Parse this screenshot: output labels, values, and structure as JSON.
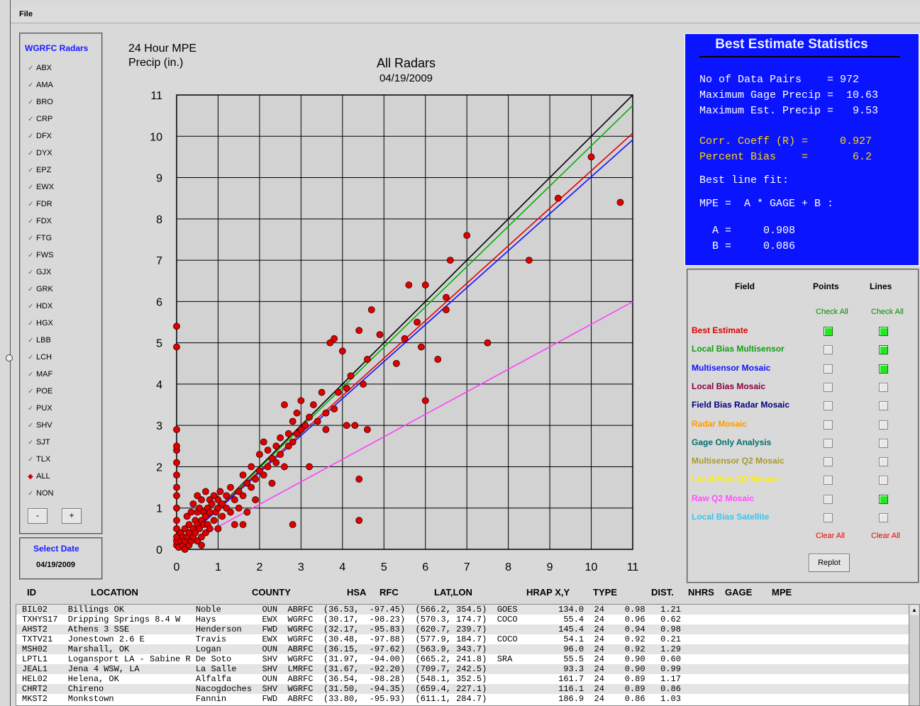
{
  "menu": {
    "file": "File"
  },
  "radars": {
    "title": "WGRFC Radars",
    "items": [
      "ABX",
      "AMA",
      "BRO",
      "CRP",
      "DFX",
      "DYX",
      "EPZ",
      "EWX",
      "FDR",
      "FDX",
      "FTG",
      "FWS",
      "GJX",
      "GRK",
      "HDX",
      "HGX",
      "LBB",
      "LCH",
      "MAF",
      "POE",
      "PUX",
      "SHV",
      "SJT",
      "TLX",
      "ALL",
      "NON"
    ],
    "selected": "ALL",
    "minus_label": "-",
    "plus_label": "+"
  },
  "date_panel": {
    "title": "Select Date",
    "value": "04/19/2009"
  },
  "chart_header": {
    "ylabel_line1": "24 Hour MPE",
    "ylabel_line2": "Precip (in.)",
    "title": "All Radars",
    "date": "04/19/2009"
  },
  "chart_data": {
    "type": "scatter",
    "title": "All Radars",
    "subtitle": "04/19/2009",
    "xlabel": "",
    "ylabel": "24 Hour MPE Precip (in.)",
    "xlim": [
      0,
      11
    ],
    "ylim": [
      0,
      11
    ],
    "ticks": [
      0,
      1,
      2,
      3,
      4,
      5,
      6,
      7,
      8,
      9,
      10,
      11
    ],
    "grid": true,
    "points": [
      [
        0,
        0.1
      ],
      [
        0,
        0.2
      ],
      [
        0,
        0.3
      ],
      [
        0,
        0.5
      ],
      [
        0,
        0.7
      ],
      [
        0,
        1.0
      ],
      [
        0,
        1.3
      ],
      [
        0,
        1.5
      ],
      [
        0,
        1.8
      ],
      [
        0,
        2.1
      ],
      [
        0,
        2.4
      ],
      [
        0,
        2.5
      ],
      [
        0,
        2.9
      ],
      [
        0,
        4.9
      ],
      [
        0,
        5.4
      ],
      [
        0.05,
        0.05
      ],
      [
        0.1,
        0.2
      ],
      [
        0.1,
        0.4
      ],
      [
        0.15,
        0.1
      ],
      [
        0.15,
        0.3
      ],
      [
        0.2,
        0.0
      ],
      [
        0.2,
        0.2
      ],
      [
        0.2,
        0.5
      ],
      [
        0.25,
        0.3
      ],
      [
        0.25,
        0.8
      ],
      [
        0.3,
        0.1
      ],
      [
        0.3,
        0.4
      ],
      [
        0.3,
        0.6
      ],
      [
        0.35,
        0.2
      ],
      [
        0.35,
        0.9
      ],
      [
        0.4,
        0.3
      ],
      [
        0.4,
        0.5
      ],
      [
        0.4,
        1.1
      ],
      [
        0.45,
        0.4
      ],
      [
        0.45,
        0.7
      ],
      [
        0.5,
        0.2
      ],
      [
        0.5,
        0.6
      ],
      [
        0.5,
        0.9
      ],
      [
        0.5,
        1.3
      ],
      [
        0.55,
        0.5
      ],
      [
        0.55,
        1.0
      ],
      [
        0.6,
        0.3
      ],
      [
        0.6,
        0.7
      ],
      [
        0.6,
        1.2
      ],
      [
        0.65,
        0.6
      ],
      [
        0.65,
        0.9
      ],
      [
        0.7,
        0.4
      ],
      [
        0.7,
        0.8
      ],
      [
        0.7,
        1.4
      ],
      [
        0.75,
        1.0
      ],
      [
        0.75,
        0.6
      ],
      [
        0.8,
        0.5
      ],
      [
        0.8,
        0.9
      ],
      [
        0.8,
        1.2
      ],
      [
        0.85,
        1.1
      ],
      [
        0.9,
        0.7
      ],
      [
        0.9,
        1.3
      ],
      [
        0.95,
        0.9
      ],
      [
        1.0,
        0.5
      ],
      [
        1.0,
        1.0
      ],
      [
        1.0,
        1.2
      ],
      [
        1.05,
        1.4
      ],
      [
        1.1,
        0.8
      ],
      [
        1.1,
        1.1
      ],
      [
        1.2,
        1.0
      ],
      [
        1.2,
        1.3
      ],
      [
        1.3,
        0.9
      ],
      [
        1.3,
        1.5
      ],
      [
        1.4,
        1.2
      ],
      [
        1.4,
        0.6
      ],
      [
        1.5,
        1.4
      ],
      [
        1.5,
        1.0
      ],
      [
        1.6,
        1.3
      ],
      [
        1.6,
        1.8
      ],
      [
        1.7,
        1.6
      ],
      [
        1.7,
        0.9
      ],
      [
        1.8,
        1.5
      ],
      [
        1.8,
        2.0
      ],
      [
        1.9,
        1.7
      ],
      [
        1.9,
        1.2
      ],
      [
        2.0,
        1.9
      ],
      [
        2.0,
        2.3
      ],
      [
        2.1,
        1.8
      ],
      [
        2.1,
        2.6
      ],
      [
        2.2,
        2.0
      ],
      [
        2.2,
        2.4
      ],
      [
        2.3,
        2.2
      ],
      [
        2.3,
        1.6
      ],
      [
        2.4,
        2.5
      ],
      [
        2.4,
        2.1
      ],
      [
        2.5,
        2.7
      ],
      [
        2.5,
        2.3
      ],
      [
        2.6,
        3.5
      ],
      [
        2.6,
        2.0
      ],
      [
        2.7,
        2.8
      ],
      [
        2.7,
        2.5
      ],
      [
        2.8,
        3.1
      ],
      [
        2.8,
        2.6
      ],
      [
        2.9,
        2.8
      ],
      [
        2.9,
        3.3
      ],
      [
        3.0,
        2.9
      ],
      [
        3.0,
        3.6
      ],
      [
        3.1,
        3.0
      ],
      [
        3.2,
        3.2
      ],
      [
        3.2,
        2.0
      ],
      [
        3.3,
        3.5
      ],
      [
        3.4,
        3.1
      ],
      [
        3.5,
        3.8
      ],
      [
        3.6,
        2.9
      ],
      [
        3.6,
        3.3
      ],
      [
        3.7,
        5.0
      ],
      [
        3.8,
        3.4
      ],
      [
        3.8,
        5.1
      ],
      [
        3.9,
        3.8
      ],
      [
        4.0,
        4.8
      ],
      [
        4.1,
        3.0
      ],
      [
        4.1,
        3.9
      ],
      [
        4.2,
        4.2
      ],
      [
        4.3,
        3.0
      ],
      [
        4.4,
        5.3
      ],
      [
        4.4,
        1.7
      ],
      [
        4.5,
        4.0
      ],
      [
        4.6,
        2.9
      ],
      [
        4.6,
        4.6
      ],
      [
        4.7,
        5.8
      ],
      [
        4.9,
        5.2
      ],
      [
        5.3,
        4.5
      ],
      [
        5.5,
        5.1
      ],
      [
        5.6,
        6.4
      ],
      [
        5.8,
        5.5
      ],
      [
        5.9,
        4.9
      ],
      [
        6.0,
        3.6
      ],
      [
        6.0,
        6.4
      ],
      [
        6.3,
        4.6
      ],
      [
        6.5,
        6.1
      ],
      [
        6.5,
        5.8
      ],
      [
        6.6,
        7.0
      ],
      [
        7.0,
        7.6
      ],
      [
        7.5,
        5.0
      ],
      [
        8.5,
        7.0
      ],
      [
        9.2,
        8.5
      ],
      [
        10.0,
        9.5
      ],
      [
        10.7,
        8.4
      ],
      [
        1.6,
        0.6
      ],
      [
        0.6,
        0.1
      ],
      [
        2.8,
        0.6
      ],
      [
        4.4,
        0.7
      ]
    ],
    "lines": [
      {
        "name": "1:1",
        "color": "#000000",
        "slope": 1.0,
        "intercept": 0.0
      },
      {
        "name": "Local Bias Multisensor",
        "color": "#00b000",
        "slope": 0.975,
        "intercept": 0.02
      },
      {
        "name": "Best Estimate",
        "color": "#e00000",
        "slope": 0.908,
        "intercept": 0.086
      },
      {
        "name": "Multisensor Mosaic",
        "color": "#1010ff",
        "slope": 0.895,
        "intercept": 0.07
      },
      {
        "name": "Raw Q2 Mosaic",
        "color": "#ff40ff",
        "slope": 0.545,
        "intercept": 0.0
      }
    ]
  },
  "stats": {
    "title": "Best Estimate Statistics",
    "line1": "No of Data Pairs    = 972",
    "line2": "Maximum Gage Precip =  10.63",
    "line3": "Maximum Est. Precip =   9.53",
    "line4": "Corr. Coeff (R) =     0.927",
    "line5": "Percent Bias    =       6.2",
    "line6": "Best line fit:",
    "line7": "MPE =  A * GAGE + B :",
    "line8": "  A =     0.908",
    "line9": "  B =     0.086"
  },
  "fields": {
    "col_field": "Field",
    "col_points": "Points",
    "col_lines": "Lines",
    "check_all_points": "Check All",
    "check_all_lines": "Check All",
    "clear_all_points": "Clear All",
    "clear_all_lines": "Clear All",
    "replot": "Replot",
    "rows": [
      {
        "label": "Best Estimate",
        "color": "#e00000",
        "points": true,
        "lines": true
      },
      {
        "label": "Local Bias Multisensor",
        "color": "#10a010",
        "points": false,
        "lines": true
      },
      {
        "label": "Multisensor Mosaic",
        "color": "#1010ff",
        "points": false,
        "lines": true
      },
      {
        "label": "Local Bias Mosaic",
        "color": "#8b0040",
        "points": false,
        "lines": false
      },
      {
        "label": "Field Bias Radar Mosaic",
        "color": "#000080",
        "points": false,
        "lines": false
      },
      {
        "label": "Radar Mosaic",
        "color": "#ff9a00",
        "points": false,
        "lines": false
      },
      {
        "label": "Gage Only Analysis",
        "color": "#007070",
        "points": false,
        "lines": false
      },
      {
        "label": "Multisensor Q2 Mosaic",
        "color": "#a89a28",
        "points": false,
        "lines": false
      },
      {
        "label": "Local Bias Q2 Mosaic",
        "color": "#ffee00",
        "points": false,
        "lines": false
      },
      {
        "label": "Raw Q2 Mosaic",
        "color": "#ff50ff",
        "points": false,
        "lines": true
      },
      {
        "label": "Local Bias Satellite",
        "color": "#30c8f0",
        "points": false,
        "lines": false
      }
    ]
  },
  "table": {
    "headers": [
      "ID",
      "LOCATION",
      "COUNTY",
      "HSA",
      "RFC",
      "LAT,LON",
      "HRAP X,Y",
      "TYPE",
      "DIST.",
      "NHRS",
      "GAGE",
      "MPE"
    ],
    "rows": [
      "BIL02    Billings OK              Noble        OUN  ABRFC  (36.53,  -97.45)  (566.2, 354.5)  GOES        134.0  24    0.98   1.21",
      "TXHYS17  Dripping Springs 8.4 W   Hays         EWX  WGRFC  (30.17,  -98.23)  (570.3, 174.7)  COCO         55.4  24    0.96   0.62",
      "AHST2    Athens 3 SSE             Henderson    FWD  WGRFC  (32.17,  -95.83)  (620.7, 239.7)              145.4  24    0.94   0.98",
      "TXTV21   Jonestown 2.6 E          Travis       EWX  WGRFC  (30.48,  -97.88)  (577.9, 184.7)  COCO         54.1  24    0.92   0.21",
      "MSH02    Marshall, OK             Logan        OUN  ABRFC  (36.15,  -97.62)  (563.9, 343.7)               96.0  24    0.92   1.29",
      "LPTL1    Logansport LA - Sabine R De Soto      SHV  WGRFC  (31.97,  -94.00)  (665.2, 241.8)  SRA          55.5  24    0.90   0.60",
      "JEAL1    Jena 4 WSW, LA           La Salle     SHV  LMRFC  (31.67,  -92.20)  (709.7, 242.5)               93.3  24    0.90   0.99",
      "HEL02    Helena, OK               Alfalfa      OUN  ABRFC  (36.54,  -98.28)  (548.1, 352.5)              161.7  24    0.89   1.17",
      "CHRT2    Chireno                  Nacogdoches  SHV  WGRFC  (31.50,  -94.35)  (659.4, 227.1)              116.1  24    0.89   0.86",
      "MKST2    Monkstown                Fannin       FWD  ABRFC  (33.80,  -95.93)  (611.1, 284.7)              186.9  24    0.86   1.03"
    ]
  },
  "colors": {
    "stats_bg": "#0a14ff",
    "point_fill": "#e00000",
    "check_on": "#22e822"
  }
}
